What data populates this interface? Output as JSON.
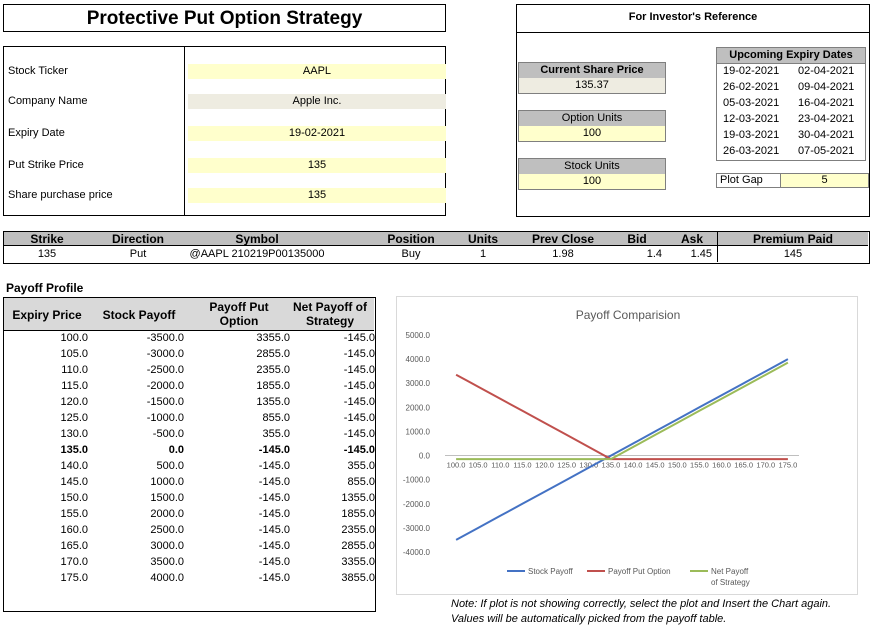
{
  "title": "Protective Put Option Strategy",
  "inputs": [
    {
      "label": "Stock Ticker",
      "value": "AAPL"
    },
    {
      "label": "Company Name",
      "value": "Apple Inc."
    },
    {
      "label": "Expiry Date",
      "value": "19-02-2021"
    },
    {
      "label": "Put Strike Price",
      "value": "135"
    },
    {
      "label": "Share purchase price",
      "value": "135"
    }
  ],
  "reference": {
    "title": "For Investor's Reference",
    "current_price_label": "Current Share Price",
    "current_price": "135.37",
    "option_units_label": "Option Units",
    "option_units": "100",
    "stock_units_label": "Stock Units",
    "stock_units": "100",
    "expiry_title": "Upcoming Expiry Dates",
    "expiry_dates": [
      [
        "19-02-2021",
        "02-04-2021"
      ],
      [
        "26-02-2021",
        "09-04-2021"
      ],
      [
        "05-03-2021",
        "16-04-2021"
      ],
      [
        "12-03-2021",
        "23-04-2021"
      ],
      [
        "19-03-2021",
        "30-04-2021"
      ],
      [
        "26-03-2021",
        "07-05-2021"
      ]
    ],
    "plot_gap_label": "Plot Gap",
    "plot_gap": "5"
  },
  "option": {
    "headers": [
      "Strike",
      "Direction",
      "Symbol",
      "Position",
      "Units",
      "Prev Close",
      "Bid",
      "Ask",
      "Premium Paid"
    ],
    "row": [
      "135",
      "Put",
      "@AAPL  210219P00135000",
      "Buy",
      "1",
      "1.98",
      "1.4",
      "1.45",
      "145"
    ]
  },
  "payoff": {
    "title": "Payoff Profile",
    "headers": [
      "Expiry Price",
      "Stock Payoff",
      "Payoff Put Option",
      "Net Payoff of Strategy"
    ],
    "rows": [
      [
        "100.0",
        "-3500.0",
        "3355.0",
        "-145.0"
      ],
      [
        "105.0",
        "-3000.0",
        "2855.0",
        "-145.0"
      ],
      [
        "110.0",
        "-2500.0",
        "2355.0",
        "-145.0"
      ],
      [
        "115.0",
        "-2000.0",
        "1855.0",
        "-145.0"
      ],
      [
        "120.0",
        "-1500.0",
        "1355.0",
        "-145.0"
      ],
      [
        "125.0",
        "-1000.0",
        "855.0",
        "-145.0"
      ],
      [
        "130.0",
        "-500.0",
        "355.0",
        "-145.0"
      ],
      [
        "135.0",
        "0.0",
        "-145.0",
        "-145.0"
      ],
      [
        "140.0",
        "500.0",
        "-145.0",
        "355.0"
      ],
      [
        "145.0",
        "1000.0",
        "-145.0",
        "855.0"
      ],
      [
        "150.0",
        "1500.0",
        "-145.0",
        "1355.0"
      ],
      [
        "155.0",
        "2000.0",
        "-145.0",
        "1855.0"
      ],
      [
        "160.0",
        "2500.0",
        "-145.0",
        "2355.0"
      ],
      [
        "165.0",
        "3000.0",
        "-145.0",
        "2855.0"
      ],
      [
        "170.0",
        "3500.0",
        "-145.0",
        "3355.0"
      ],
      [
        "175.0",
        "4000.0",
        "-145.0",
        "3855.0"
      ]
    ],
    "bold_row_index": 7
  },
  "chart_data": {
    "type": "line",
    "title": "Payoff Comparision",
    "x": [
      100,
      105,
      110,
      115,
      120,
      125,
      130,
      135,
      140,
      145,
      150,
      155,
      160,
      165,
      170,
      175
    ],
    "x_tick_labels": [
      "100.0",
      "105.0",
      "110.0",
      "115.0",
      "120.0",
      "125.0",
      "130.0",
      "135.0",
      "140.0",
      "145.0",
      "150.0",
      "155.0",
      "160.0",
      "165.0",
      "170.0",
      "175.0"
    ],
    "y_ticks": [
      5000,
      4000,
      3000,
      2000,
      1000,
      0,
      -1000,
      -2000,
      -3000,
      -4000
    ],
    "y_tick_labels": [
      "5000.0",
      "4000.0",
      "3000.0",
      "2000.0",
      "1000.0",
      "0.0",
      "-1000.0",
      "-2000.0",
      "-3000.0",
      "-4000.0"
    ],
    "ylim": [
      -4000,
      5000
    ],
    "series": [
      {
        "name": "Stock Payoff",
        "color": "#4472c4",
        "values": [
          -3500,
          -3000,
          -2500,
          -2000,
          -1500,
          -1000,
          -500,
          0,
          500,
          1000,
          1500,
          2000,
          2500,
          3000,
          3500,
          4000
        ]
      },
      {
        "name": "Payoff Put Option",
        "color": "#c0504d",
        "values": [
          3355,
          2855,
          2355,
          1855,
          1355,
          855,
          355,
          -145,
          -145,
          -145,
          -145,
          -145,
          -145,
          -145,
          -145,
          -145
        ]
      },
      {
        "name": "Net Payoff of Strategy",
        "name_lines": [
          "Net Payoff",
          "of Strategy"
        ],
        "color": "#9bbb59",
        "values": [
          -145,
          -145,
          -145,
          -145,
          -145,
          -145,
          -145,
          -145,
          355,
          855,
          1355,
          1855,
          2355,
          2855,
          3355,
          3855
        ]
      }
    ],
    "legend_position": "bottom",
    "grid": false
  },
  "note": [
    "Note: If plot is not showing correctly, select the plot and Insert the Chart again.",
    "Values will be automatically picked from the payoff table."
  ]
}
